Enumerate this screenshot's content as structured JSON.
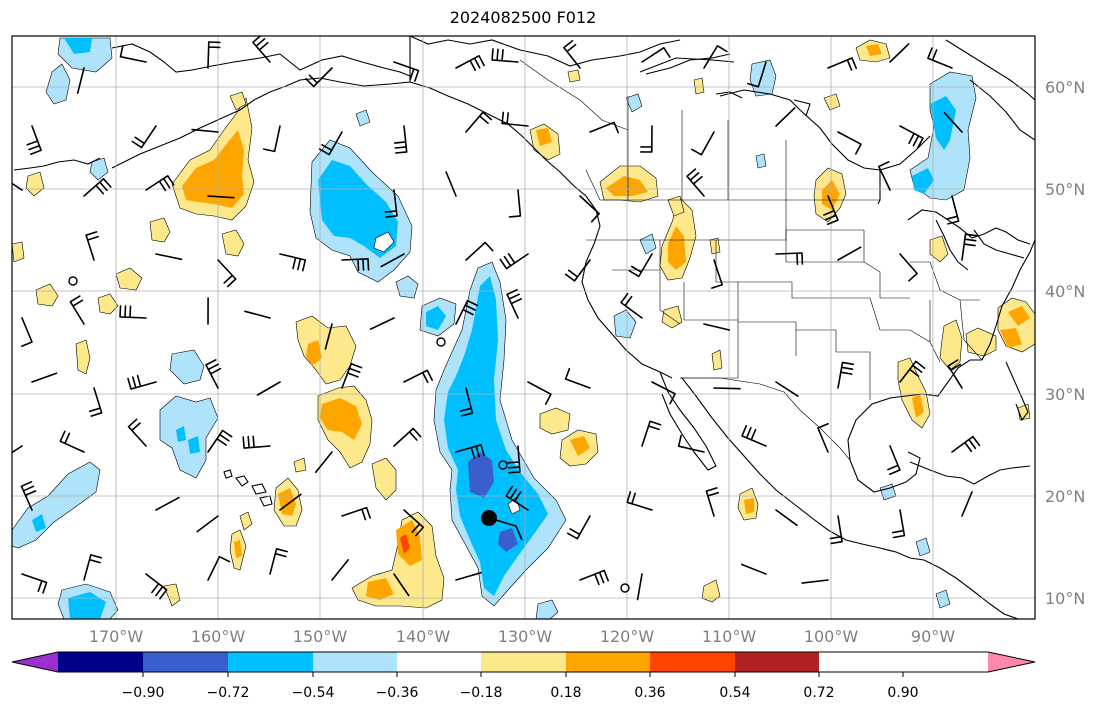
{
  "title": "2024082500 F012",
  "map": {
    "lon_labels": [
      "170°W",
      "160°W",
      "150°W",
      "140°W",
      "130°W",
      "120°W",
      "110°W",
      "100°W",
      "90°W"
    ],
    "lat_labels": [
      "60°N",
      "50°N",
      "40°N",
      "30°N",
      "20°N",
      "10°N"
    ],
    "lon_range": [
      -180,
      -80
    ],
    "lat_range": [
      8,
      65
    ],
    "gridlines": true
  },
  "colorbar": {
    "tick_labels": [
      "−0.90",
      "−0.72",
      "−0.54",
      "−0.36",
      "−0.18",
      "0.18",
      "0.36",
      "0.54",
      "0.72",
      "0.90"
    ],
    "colors": [
      "#9b30d0",
      "#00008b",
      "#3a5fcd",
      "#00bfff",
      "#aee3fb",
      "#ffffff",
      "#fde98b",
      "#ffa500",
      "#ff4500",
      "#b22222",
      "#ff88aa"
    ],
    "extend": "both"
  }
}
